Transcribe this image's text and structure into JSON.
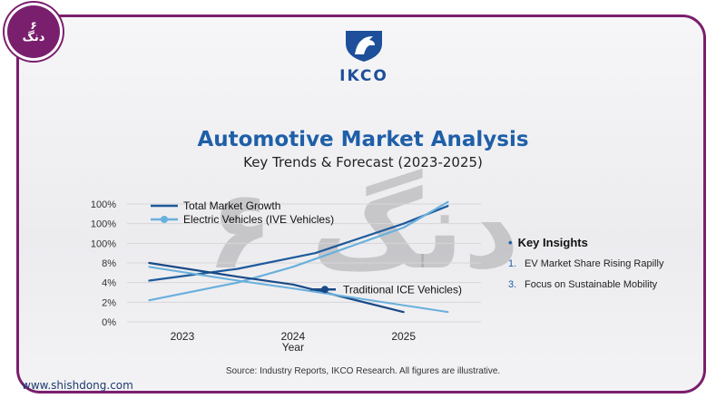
{
  "badge": {
    "num": "۶",
    "word": "دنگ"
  },
  "website": "www.shishdong.com",
  "logo": {
    "brand": "IKCO"
  },
  "title": "Automotive Market Analysis",
  "subtitle": "Key Trends & Forecast (2023-2025)",
  "watermark": "۶ دنگ",
  "source": "Source: Industry Reports, IKCO Research. All figures are illustrative.",
  "insights": {
    "heading": "Key Insights",
    "items": [
      {
        "num": "1.",
        "text": "EV Market Share Rising Rapilly"
      },
      {
        "num": "3.",
        "text": "Focus on Sustainable Mobility"
      }
    ]
  },
  "colors": {
    "frame": "#7a1f6e",
    "title": "#1f5fa8",
    "total": "#1f5a9c",
    "ev": "#6ab0dc",
    "ice": "#1a4a86"
  },
  "chart_data": {
    "type": "line",
    "x": [
      2023,
      2024,
      2025
    ],
    "xlabel": "Year",
    "ylabel": "",
    "ylim": [
      0,
      6
    ],
    "ytick_labels": [
      "0%",
      "2%",
      "4%",
      "8%",
      "100%",
      "100%",
      "100%"
    ],
    "xtick_labels": [
      "2023",
      "2024",
      "2025"
    ],
    "grid": true,
    "series": [
      {
        "name": "Total Market Growth",
        "x": [
          2022.7,
          2023.5,
          2024.2,
          2025.0,
          2025.4
        ],
        "y": [
          2.1,
          2.7,
          3.5,
          5.0,
          5.9
        ]
      },
      {
        "name": "Electric Vehicles (IVE Vehicles)",
        "x": [
          2022.7,
          2023.5,
          2024.0,
          2025.0,
          2025.4
        ],
        "y": [
          1.1,
          2.0,
          2.8,
          4.8,
          6.1
        ]
      },
      {
        "name": "Traditional ICE Vehicles)",
        "x": [
          2022.7,
          2023.5,
          2024.0,
          2025.0
        ],
        "y": [
          3.0,
          2.3,
          1.9,
          0.5
        ]
      },
      {
        "name": "",
        "x": [
          2022.7,
          2023.5,
          2024.0,
          2025.4
        ],
        "y": [
          2.8,
          2.1,
          1.7,
          0.5
        ]
      }
    ]
  }
}
